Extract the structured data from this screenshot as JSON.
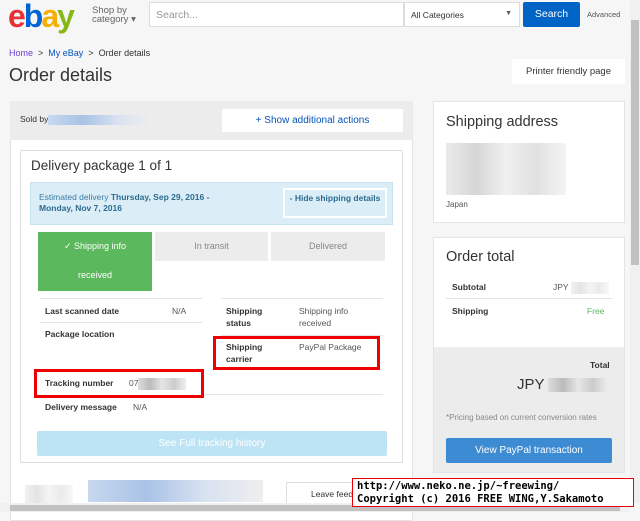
{
  "header": {
    "logo": [
      "e",
      "b",
      "a",
      "y"
    ],
    "shop_by": "Shop by category",
    "search_placeholder": "Search...",
    "category": "All Categories",
    "search_button": "Search",
    "advanced": "Advanced"
  },
  "breadcrumb": [
    "Home",
    "My eBay",
    "Order details"
  ],
  "page_title": "Order details",
  "printer_friendly": "Printer friendly page",
  "seller": {
    "sold_by": "Sold by",
    "show_actions": "+ Show additional actions"
  },
  "package": {
    "title": "Delivery package 1 of 1",
    "est_label": "Estimated delivery",
    "est_dates": "Thursday, Sep 29, 2016 - Monday, Nov 7, 2016",
    "hide_details": "- Hide shipping details",
    "steps": [
      {
        "label": "✓ Shipping info received",
        "active": true
      },
      {
        "label": "In transit",
        "active": false
      },
      {
        "label": "Delivered",
        "active": false
      }
    ],
    "last_scanned_label": "Last scanned date",
    "last_scanned": "N/A",
    "package_location_label": "Package location",
    "shipping_status_label": "Shipping status",
    "shipping_status": "Shipping info received",
    "carrier_label": "Shipping carrier",
    "carrier": "PayPal Package",
    "tracking_label": "Tracking number",
    "tracking_prefix": "07",
    "delivery_message_label": "Delivery message",
    "delivery_message": "N/A",
    "tracking_history": "See Full tracking history"
  },
  "leave_feedback": "Leave feedback",
  "shipping_address": {
    "title": "Shipping address",
    "country": "Japan"
  },
  "order_total": {
    "title": "Order total",
    "subtotal_label": "Subtotal",
    "subtotal_currency": "JPY",
    "shipping_label": "Shipping",
    "shipping": "Free",
    "total_label": "Total",
    "total_currency": "JPY",
    "note": "*Pricing based on current conversion rates",
    "paypal_button": "View PayPal transaction"
  },
  "colors": {
    "accent": "#0063c6",
    "success": "#5cb85c",
    "highlight": "#e00000"
  },
  "watermark": [
    "http://www.neko.ne.jp/~freewing/",
    "Copyright (c) 2016 FREE WING,Y.Sakamoto"
  ]
}
